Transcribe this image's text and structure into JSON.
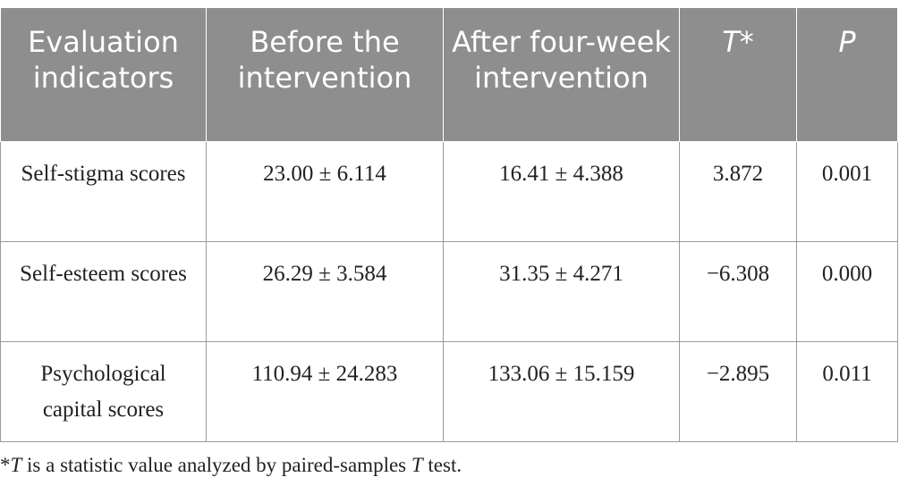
{
  "table": {
    "headers": [
      {
        "text": "Evaluation indicators",
        "italic": false
      },
      {
        "text": "Before the intervention",
        "italic": false
      },
      {
        "text": "After four-week intervention",
        "italic": false
      },
      {
        "text": "T*",
        "italic": true
      },
      {
        "text": "P",
        "italic": true
      }
    ],
    "rows": [
      {
        "indicator": "Self-stigma scores",
        "before": "23.00 ± 6.114",
        "after": "16.41 ± 4.388",
        "t": "3.872",
        "p": "0.001"
      },
      {
        "indicator": "Self-esteem scores",
        "before": "26.29 ± 3.584",
        "after": "31.35 ± 4.271",
        "t": "−6.308",
        "p": "0.000"
      },
      {
        "indicator": "Psychological capital scores",
        "before": "110.94 ± 24.283",
        "after": "133.06 ± 15.159",
        "t": "−2.895",
        "p": "0.011"
      }
    ]
  },
  "footnote": {
    "marker": "*",
    "t_symbol": "T",
    "text_part1": " is a statistic value analyzed by paired-samples ",
    "t_symbol2": "T",
    "text_part2": " test."
  }
}
